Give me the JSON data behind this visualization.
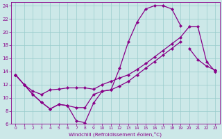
{
  "xlabel": "Windchill (Refroidissement éolien,°C)",
  "bg_color": "#cce8e8",
  "line_color": "#880088",
  "grid_color": "#99cccc",
  "xlim": [
    -0.5,
    23.5
  ],
  "ylim": [
    6,
    24.5
  ],
  "xticks": [
    0,
    1,
    2,
    3,
    4,
    5,
    6,
    7,
    8,
    9,
    10,
    11,
    12,
    13,
    14,
    15,
    16,
    17,
    18,
    19,
    20,
    21,
    22,
    23
  ],
  "yticks": [
    6,
    8,
    10,
    12,
    14,
    16,
    18,
    20,
    22,
    24
  ],
  "line1_x": [
    0,
    1,
    2,
    3,
    4,
    5,
    6,
    7,
    8,
    9,
    10,
    11,
    12,
    13,
    14,
    15,
    16,
    17,
    18,
    19,
    20,
    21,
    22,
    23
  ],
  "line1_y": [
    13.5,
    12.0,
    10.5,
    9.3,
    8.3,
    9.0,
    8.8,
    6.5,
    6.2,
    9.2,
    11.0,
    11.2,
    14.5,
    18.5,
    21.5,
    23.5,
    24.0,
    24.0,
    23.5,
    21.0,
    null,
    null,
    null,
    14.0
  ],
  "line2_x": [
    0,
    1,
    2,
    3,
    4,
    5,
    6,
    7,
    8,
    9,
    10,
    11,
    12,
    13,
    14,
    15,
    16,
    17,
    18,
    19,
    20,
    21,
    22,
    23
  ],
  "line2_y": [
    13.5,
    12.0,
    11.0,
    10.5,
    11.2,
    11.3,
    11.5,
    11.5,
    11.5,
    11.3,
    12.0,
    12.5,
    13.0,
    13.5,
    14.3,
    15.2,
    16.2,
    17.2,
    18.2,
    19.2,
    20.8,
    20.8,
    15.5,
    14.0
  ],
  "line3_x": [
    0,
    1,
    2,
    3,
    4,
    5,
    6,
    7,
    8,
    9,
    10,
    11,
    12,
    13,
    14,
    15,
    16,
    17,
    18,
    19,
    20,
    21,
    22,
    23
  ],
  "line3_y": [
    13.5,
    null,
    null,
    null,
    null,
    null,
    null,
    null,
    null,
    null,
    null,
    null,
    null,
    null,
    null,
    null,
    null,
    null,
    null,
    null,
    17.5,
    15.8,
    14.8,
    14.2
  ],
  "line4_x": [
    0,
    1,
    2,
    3,
    4,
    5,
    6,
    7,
    8,
    9,
    10,
    11,
    12,
    13,
    14,
    15,
    16,
    17,
    18,
    19,
    20,
    21,
    22,
    23
  ],
  "line4_y": [
    13.5,
    12.0,
    10.5,
    9.3,
    8.3,
    9.0,
    8.8,
    8.5,
    8.5,
    10.5,
    11.0,
    11.2,
    11.8,
    12.5,
    13.5,
    14.5,
    15.5,
    16.5,
    17.5,
    18.5,
    null,
    null,
    null,
    14.2
  ]
}
